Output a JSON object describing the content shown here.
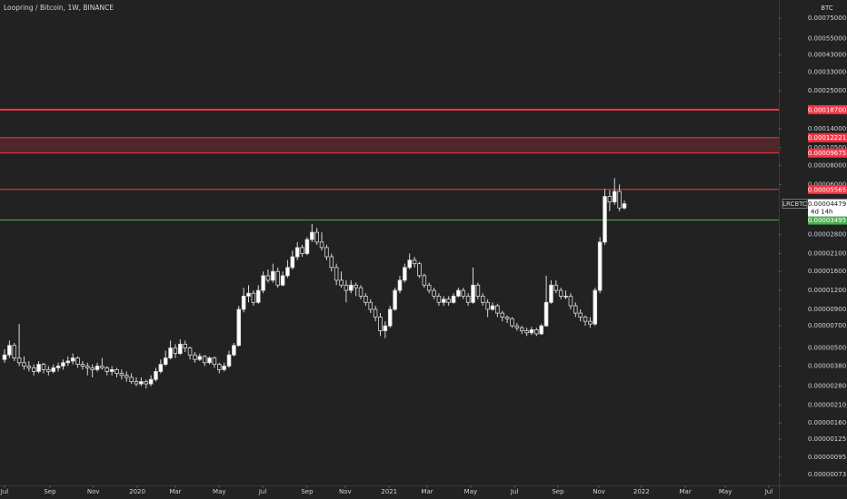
{
  "chart_data": {
    "type": "candlestick",
    "title": "Loopring / Bitcoin, 1W, BINANCE",
    "y_unit": "BTC",
    "log_scale": true,
    "ylim": [
      6.2e-07,
      0.00099
    ],
    "xlim": [
      -0.93,
      158.66
    ],
    "yticks": [
      {
        "value": 0.00075,
        "label": "0.00075000"
      },
      {
        "value": 0.00055,
        "label": "0.00055000"
      },
      {
        "value": 0.00043,
        "label": "0.00043000"
      },
      {
        "value": 0.00033,
        "label": "0.00033000"
      },
      {
        "value": 0.00025,
        "label": "0.00025000"
      },
      {
        "value": 0.00014,
        "label": "0.00014000"
      },
      {
        "value": 0.000105,
        "label": "0.00010500"
      },
      {
        "value": 8e-05,
        "label": "0.00008000"
      },
      {
        "value": 6e-05,
        "label": "0.00006000"
      },
      {
        "value": 2.8e-05,
        "label": "0.00002800"
      },
      {
        "value": 2.1e-05,
        "label": "0.00002100"
      },
      {
        "value": 1.6e-05,
        "label": "0.00001600"
      },
      {
        "value": 1.2e-05,
        "label": "0.00001200"
      },
      {
        "value": 9e-06,
        "label": "0.00000900"
      },
      {
        "value": 7e-06,
        "label": "0.00000700"
      },
      {
        "value": 5e-06,
        "label": "0.00000500"
      },
      {
        "value": 3.8e-06,
        "label": "0.00000380"
      },
      {
        "value": 2.8e-06,
        "label": "0.00000280"
      },
      {
        "value": 2.1e-06,
        "label": "0.00000210"
      },
      {
        "value": 1.6e-06,
        "label": "0.00000160"
      },
      {
        "value": 1.25e-06,
        "label": "0.00000125"
      },
      {
        "value": 9.5e-07,
        "label": "0.00000095"
      },
      {
        "value": 7.3e-07,
        "label": "0.00000073"
      }
    ],
    "xticks": [
      {
        "value": 0,
        "label": "Jul"
      },
      {
        "value": 9.3,
        "label": "Sep"
      },
      {
        "value": 18.2,
        "label": "Nov"
      },
      {
        "value": 27.2,
        "label": "2020"
      },
      {
        "value": 35,
        "label": "Mar"
      },
      {
        "value": 44,
        "label": "May"
      },
      {
        "value": 52.9,
        "label": "Jul"
      },
      {
        "value": 62,
        "label": "Sep"
      },
      {
        "value": 69.8,
        "label": "Nov"
      },
      {
        "value": 78.8,
        "label": "2021"
      },
      {
        "value": 86.6,
        "label": "Mar"
      },
      {
        "value": 95.5,
        "label": "May"
      },
      {
        "value": 104.5,
        "label": "Jul"
      },
      {
        "value": 113.4,
        "label": "Sep"
      },
      {
        "value": 121.8,
        "label": "Nov"
      },
      {
        "value": 130.5,
        "label": "2022"
      },
      {
        "value": 139.5,
        "label": "Mar"
      },
      {
        "value": 147.7,
        "label": "May"
      },
      {
        "value": 156.6,
        "label": "Jul"
      }
    ],
    "up_color": "#ffffff",
    "down_color": "#222222",
    "levels": [
      {
        "value": 0.000187,
        "label": "0.00018700",
        "color": "#f23645"
      },
      {
        "value": 0.00012221,
        "label": "0.00012221",
        "color": "#f23645"
      },
      {
        "value": 9.675e-05,
        "label": "0.00009675",
        "color": "#f23645"
      },
      {
        "value": 5.565e-05,
        "label": "0.00005565",
        "color": "#f23645"
      },
      {
        "value": 3.495e-05,
        "label": "0.00003495",
        "color": "#4caf50"
      }
    ],
    "zone": {
      "color": "#f23645"
    },
    "symbol": "LRCBTC",
    "last_price": {
      "value": 4.479e-05,
      "label": "0.00004479"
    },
    "countdown": "4d 14h",
    "candles": [
      [
        4.2e-06,
        4.9e-06,
        4e-06,
        4.5e-06
      ],
      [
        4.5e-06,
        5.6e-06,
        4.3e-06,
        5.2e-06
      ],
      [
        5.2e-06,
        5.4e-06,
        4.1e-06,
        4.3e-06
      ],
      [
        4.3e-06,
        7.2e-06,
        3.8e-06,
        4e-06
      ],
      [
        4e-06,
        4.4e-06,
        3.6e-06,
        3.8e-06
      ],
      [
        3.8e-06,
        4.1e-06,
        3.5e-06,
        3.7e-06
      ],
      [
        3.7e-06,
        3.9e-06,
        3.3e-06,
        3.5e-06
      ],
      [
        3.5e-06,
        4.1e-06,
        3.4e-06,
        3.9e-06
      ],
      [
        3.9e-06,
        4e-06,
        3.4e-06,
        3.6e-06
      ],
      [
        3.6e-06,
        3.8e-06,
        3.3e-06,
        3.5e-06
      ],
      [
        3.5e-06,
        3.9e-06,
        3.4e-06,
        3.7e-06
      ],
      [
        3.7e-06,
        4e-06,
        3.5e-06,
        3.8e-06
      ],
      [
        3.8e-06,
        4.2e-06,
        3.6e-06,
        4e-06
      ],
      [
        4e-06,
        4.4e-06,
        3.8e-06,
        4.1e-06
      ],
      [
        4.1e-06,
        4.6e-06,
        3.9e-06,
        4.3e-06
      ],
      [
        4.3e-06,
        4.4e-06,
        3.7e-06,
        3.9e-06
      ],
      [
        3.9e-06,
        4.1e-06,
        3.6e-06,
        3.8e-06
      ],
      [
        3.8e-06,
        4e-06,
        3.3e-06,
        3.7e-06
      ],
      [
        3.7e-06,
        3.9e-06,
        3.2e-06,
        3.6e-06
      ],
      [
        3.6e-06,
        4e-06,
        3.5e-06,
        3.8e-06
      ],
      [
        3.8e-06,
        4.3e-06,
        3.6e-06,
        3.7e-06
      ],
      [
        3.7e-06,
        3.8e-06,
        3.3e-06,
        3.5e-06
      ],
      [
        3.5e-06,
        3.8e-06,
        3.3e-06,
        3.6e-06
      ],
      [
        3.6e-06,
        3.7e-06,
        3.2e-06,
        3.4e-06
      ],
      [
        3.4e-06,
        3.6e-06,
        3.1e-06,
        3.3e-06
      ],
      [
        3.3e-06,
        3.5e-06,
        3e-06,
        3.2e-06
      ],
      [
        3.2e-06,
        3.4e-06,
        2.9e-06,
        3e-06
      ],
      [
        3e-06,
        3.2e-06,
        2.8e-06,
        2.9e-06
      ],
      [
        2.9e-06,
        3.2e-06,
        2.8e-06,
        3e-06
      ],
      [
        3e-06,
        3.1e-06,
        2.7e-06,
        2.9e-06
      ],
      [
        2.9e-06,
        3.3e-06,
        2.8e-06,
        3.1e-06
      ],
      [
        3.1e-06,
        3.7e-06,
        3e-06,
        3.5e-06
      ],
      [
        3.5e-06,
        4.2e-06,
        3.4e-06,
        3.9e-06
      ],
      [
        3.9e-06,
        4.8e-06,
        3.8e-06,
        4.3e-06
      ],
      [
        4.3e-06,
        5.6e-06,
        4.2e-06,
        5e-06
      ],
      [
        5e-06,
        5.3e-06,
        4.3e-06,
        4.6e-06
      ],
      [
        4.6e-06,
        5.7e-06,
        4.5e-06,
        5.3e-06
      ],
      [
        5.3e-06,
        5.6e-06,
        4.7e-06,
        5e-06
      ],
      [
        5e-06,
        5.1e-06,
        4.2e-06,
        4.5e-06
      ],
      [
        4.5e-06,
        4.7e-06,
        4e-06,
        4.2e-06
      ],
      [
        4.2e-06,
        4.6e-06,
        4.1e-06,
        4.4e-06
      ],
      [
        4.4e-06,
        4.5e-06,
        3.8e-06,
        4e-06
      ],
      [
        4e-06,
        4.4e-06,
        3.9e-06,
        4.3e-06
      ],
      [
        4.3e-06,
        4.4e-06,
        3.7e-06,
        3.9e-06
      ],
      [
        3.9e-06,
        4e-06,
        3.4e-06,
        3.6e-06
      ],
      [
        3.6e-06,
        4e-06,
        3.5e-06,
        3.8e-06
      ],
      [
        3.8e-06,
        4.8e-06,
        3.7e-06,
        4.5e-06
      ],
      [
        4.5e-06,
        5.4e-06,
        4.4e-06,
        5.2e-06
      ],
      [
        5.2e-06,
        9.5e-06,
        5.1e-06,
        9e-06
      ],
      [
        9e-06,
        1.25e-05,
        8.6e-06,
        1.1e-05
      ],
      [
        1.1e-05,
        1.3e-05,
        1e-05,
        1.15e-05
      ],
      [
        1.15e-05,
        1.2e-05,
        9.5e-06,
        1e-05
      ],
      [
        1e-05,
        1.3e-05,
        9.8e-06,
        1.2e-05
      ],
      [
        1.2e-05,
        1.6e-05,
        1.15e-05,
        1.5e-05
      ],
      [
        1.5e-05,
        1.65e-05,
        1.35e-05,
        1.4e-05
      ],
      [
        1.4e-05,
        1.8e-05,
        1.35e-05,
        1.6e-05
      ],
      [
        1.6e-05,
        1.7e-05,
        1.25e-05,
        1.3e-05
      ],
      [
        1.3e-05,
        1.6e-05,
        1.28e-05,
        1.5e-05
      ],
      [
        1.5e-05,
        1.9e-05,
        1.45e-05,
        1.7e-05
      ],
      [
        1.7e-05,
        2.2e-05,
        1.65e-05,
        2e-05
      ],
      [
        2e-05,
        2.5e-05,
        1.9e-05,
        2.3e-05
      ],
      [
        2.3e-05,
        2.4e-05,
        2e-05,
        2.1e-05
      ],
      [
        2.1e-05,
        2.7e-05,
        2.05e-05,
        2.6e-05
      ],
      [
        2.6e-05,
        3.3e-05,
        2.5e-05,
        2.9e-05
      ],
      [
        2.9e-05,
        3.1e-05,
        2.4e-05,
        2.5e-05
      ],
      [
        2.5e-05,
        2.9e-05,
        2.2e-05,
        2.3e-05
      ],
      [
        2.3e-05,
        2.4e-05,
        1.9e-05,
        2e-05
      ],
      [
        2e-05,
        2.1e-05,
        1.6e-05,
        1.7e-05
      ],
      [
        1.7e-05,
        1.8e-05,
        1.3e-05,
        1.4e-05
      ],
      [
        1.4e-05,
        1.6e-05,
        1.25e-05,
        1.3e-05
      ],
      [
        1.3e-05,
        1.4e-05,
        1e-05,
        1.2e-05
      ],
      [
        1.2e-05,
        1.4e-05,
        1.15e-05,
        1.3e-05
      ],
      [
        1.3e-05,
        1.35e-05,
        1.1e-05,
        1.25e-05
      ],
      [
        1.25e-05,
        1.3e-05,
        1.05e-05,
        1.1e-05
      ],
      [
        1.1e-05,
        1.15e-05,
        9.5e-06,
        1e-05
      ],
      [
        1e-05,
        1.05e-05,
        8.5e-06,
        9e-06
      ],
      [
        9e-06,
        9.5e-06,
        7.5e-06,
        8e-06
      ],
      [
        8e-06,
        8.5e-06,
        6e-06,
        6.5e-06
      ],
      [
        6.5e-06,
        7.5e-06,
        5.8e-06,
        7e-06
      ],
      [
        7e-06,
        9.5e-06,
        6.8e-06,
        9e-06
      ],
      [
        9e-06,
        1.25e-05,
        8.8e-06,
        1.2e-05
      ],
      [
        1.2e-05,
        1.5e-05,
        1.15e-05,
        1.4e-05
      ],
      [
        1.4e-05,
        1.8e-05,
        1.35e-05,
        1.7e-05
      ],
      [
        1.7e-05,
        2.1e-05,
        1.65e-05,
        1.9e-05
      ],
      [
        1.9e-05,
        2e-05,
        1.7e-05,
        1.8e-05
      ],
      [
        1.8e-05,
        1.85e-05,
        1.45e-05,
        1.5e-05
      ],
      [
        1.5e-05,
        1.55e-05,
        1.25e-05,
        1.3e-05
      ],
      [
        1.3e-05,
        1.35e-05,
        1.15e-05,
        1.2e-05
      ],
      [
        1.2e-05,
        1.25e-05,
        1.05e-05,
        1.1e-05
      ],
      [
        1.1e-05,
        1.15e-05,
        9.5e-06,
        1e-05
      ],
      [
        1e-05,
        1.1e-05,
        9.5e-06,
        1.05e-05
      ],
      [
        1.05e-05,
        1.1e-05,
        9.5e-06,
        1e-05
      ],
      [
        1e-05,
        1.15e-05,
        9.8e-06,
        1.1e-05
      ],
      [
        1.1e-05,
        1.25e-05,
        1.08e-05,
        1.2e-05
      ],
      [
        1.2e-05,
        1.25e-05,
        1.05e-05,
        1.1e-05
      ],
      [
        1.1e-05,
        1.15e-05,
        9.5e-06,
        1e-05
      ],
      [
        1e-05,
        1.7e-05,
        9.8e-06,
        1.3e-05
      ],
      [
        1.3e-05,
        1.35e-05,
        1.05e-05,
        1.1e-05
      ],
      [
        1.1e-05,
        1.15e-05,
        9.5e-06,
        1e-05
      ],
      [
        1e-05,
        1.05e-05,
        8e-06,
        9e-06
      ],
      [
        9e-06,
        1e-05,
        8.8e-06,
        9.5e-06
      ],
      [
        9.5e-06,
        9.8e-06,
        8e-06,
        8.5e-06
      ],
      [
        8.5e-06,
        8.8e-06,
        7.5e-06,
        8e-06
      ],
      [
        8e-06,
        8.2e-06,
        7.3e-06,
        7.8e-06
      ],
      [
        7.8e-06,
        8e-06,
        6.8e-06,
        7e-06
      ],
      [
        7e-06,
        7.3e-06,
        6.5e-06,
        6.8e-06
      ],
      [
        6.8e-06,
        7e-06,
        6.2e-06,
        6.5e-06
      ],
      [
        6.5e-06,
        6.8e-06,
        6e-06,
        6.3e-06
      ],
      [
        6.3e-06,
        6.9e-06,
        6.1e-06,
        6.6e-06
      ],
      [
        6.6e-06,
        6.8e-06,
        6e-06,
        6.2e-06
      ],
      [
        6.2e-06,
        7.2e-06,
        6.1e-06,
        7e-06
      ],
      [
        7e-06,
        1.5e-05,
        6.9e-06,
        1e-05
      ],
      [
        1e-05,
        1.4e-05,
        9.8e-06,
        1.3e-05
      ],
      [
        1.3e-05,
        1.4e-05,
        1.15e-05,
        1.2e-05
      ],
      [
        1.2e-05,
        1.25e-05,
        1.05e-05,
        1.1e-05
      ],
      [
        1.1e-05,
        1.2e-05,
        1.05e-05,
        1.1e-05
      ],
      [
        1.1e-05,
        1.15e-05,
        9e-06,
        9.5e-06
      ],
      [
        9.5e-06,
        1e-05,
        8e-06,
        8.5e-06
      ],
      [
        8.5e-06,
        9e-06,
        7.5e-06,
        8e-06
      ],
      [
        8e-06,
        8.2e-06,
        7e-06,
        7.5e-06
      ],
      [
        7.5e-06,
        8e-06,
        6.8e-06,
        7.2e-06
      ],
      [
        7.2e-06,
        1.25e-05,
        7e-06,
        1.2e-05
      ],
      [
        1.2e-05,
        2.7e-05,
        1.15e-05,
        2.5e-05
      ],
      [
        2.5e-05,
        5.6e-05,
        2.4e-05,
        5e-05
      ],
      [
        5e-05,
        5.5e-05,
        4e-05,
        4.6e-05
      ],
      [
        4.6e-05,
        6.6e-05,
        4.4e-05,
        5.4e-05
      ],
      [
        5.4e-05,
        6e-05,
        4e-05,
        4.2e-05
      ],
      [
        4.2e-05,
        4.7e-05,
        4.1e-05,
        4.479e-05
      ]
    ]
  }
}
